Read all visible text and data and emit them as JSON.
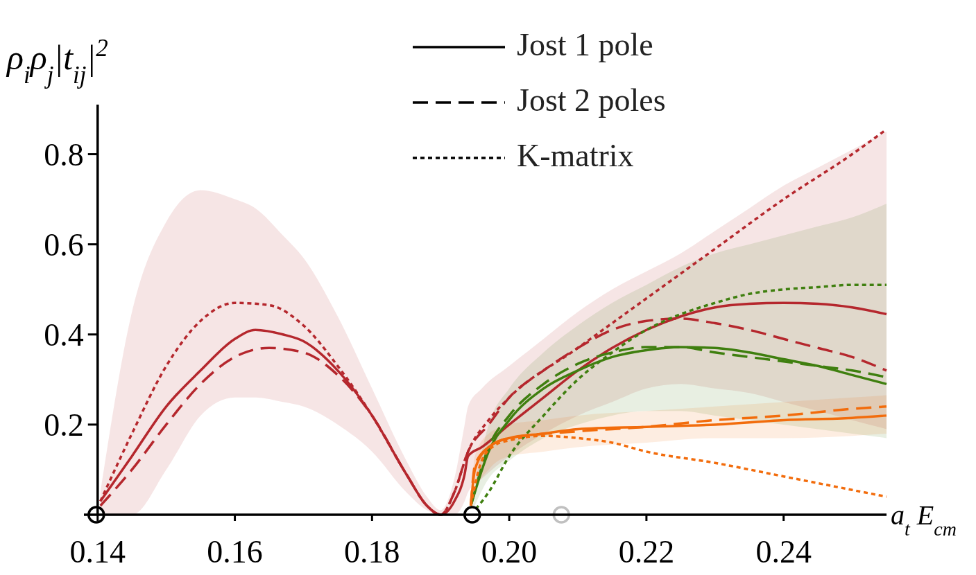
{
  "chart_data": {
    "type": "line",
    "xlabel": "a$_{t}$ E$_{cm}$",
    "ylabel": "ρ$_{i}$ρ$_{j}$|t$_{ij}$|$^{2}$",
    "annotations": [
      "Jost 1 pole",
      "Jost 2 poles",
      "K-matrix"
    ],
    "xlim": [
      0.138,
      0.255
    ],
    "ylim": [
      0,
      0.91
    ],
    "xticks": [
      {
        "value": 0.14,
        "label": "0.14"
      },
      {
        "value": 0.16,
        "label": "0.16"
      },
      {
        "value": 0.18,
        "label": "0.18"
      },
      {
        "value": 0.2,
        "label": "0.20"
      },
      {
        "value": 0.22,
        "label": "0.22"
      },
      {
        "value": 0.24,
        "label": "0.24"
      }
    ],
    "yticks": [
      0.2,
      0.4,
      0.6,
      0.8
    ],
    "grid": false,
    "series": [
      {
        "color": "#b5272d",
        "line_style": "solid",
        "x": [
          0.1404,
          0.145,
          0.15,
          0.155,
          0.16,
          0.163,
          0.167,
          0.17,
          0.175,
          0.18,
          0.185,
          0.188,
          0.19,
          0.192,
          0.1935,
          0.194,
          0.196,
          0.2,
          0.205,
          0.21,
          0.215,
          0.22,
          0.225,
          0.23,
          0.235,
          0.24,
          0.245,
          0.25,
          0.255
        ],
        "values": [
          0.03,
          0.13,
          0.24,
          0.32,
          0.39,
          0.41,
          0.4,
          0.385,
          0.32,
          0.22,
          0.09,
          0.02,
          0,
          0.03,
          0.09,
          0.13,
          0.15,
          0.2,
          0.26,
          0.32,
          0.37,
          0.41,
          0.44,
          0.46,
          0.468,
          0.47,
          0.468,
          0.46,
          0.445
        ],
        "upper": [
          0.05,
          0.45,
          0.65,
          0.72,
          0.7,
          0.68,
          0.62,
          0.57,
          0.44,
          0.28,
          0.12,
          0.04,
          0.01,
          0.08,
          0.2,
          0.24,
          0.28,
          0.33,
          0.39,
          0.45,
          0.5,
          0.54,
          0.58,
          0.63,
          0.68,
          0.73,
          0.77,
          0.81,
          0.85
        ],
        "lower": [
          0,
          0,
          0.1,
          0.22,
          0.26,
          0.26,
          0.25,
          0.24,
          0.2,
          0.14,
          0.05,
          0.01,
          0,
          0,
          0.03,
          0.05,
          0.08,
          0.13,
          0.18,
          0.22,
          0.25,
          0.28,
          0.29,
          0.28,
          0.27,
          0.25,
          0.23,
          0.21,
          0.19
        ]
      },
      {
        "color": "#b5272d",
        "line_style": "dashed",
        "x": [
          0.1404,
          0.145,
          0.15,
          0.155,
          0.16,
          0.165,
          0.17,
          0.175,
          0.18,
          0.185,
          0.188,
          0.19,
          0.192,
          0.194,
          0.197,
          0.2,
          0.205,
          0.21,
          0.215,
          0.22,
          0.225,
          0.23,
          0.235,
          0.24,
          0.245,
          0.25,
          0.255
        ],
        "values": [
          0.02,
          0.1,
          0.2,
          0.29,
          0.35,
          0.37,
          0.36,
          0.31,
          0.22,
          0.09,
          0.02,
          0,
          0.05,
          0.14,
          0.2,
          0.26,
          0.32,
          0.37,
          0.41,
          0.43,
          0.435,
          0.425,
          0.41,
          0.39,
          0.37,
          0.35,
          0.32
        ]
      },
      {
        "color": "#b5272d",
        "line_style": "dotted",
        "x": [
          0.1404,
          0.145,
          0.15,
          0.155,
          0.16,
          0.165,
          0.17,
          0.175,
          0.18,
          0.185,
          0.188,
          0.19,
          0.192,
          0.194,
          0.197,
          0.2,
          0.21,
          0.22,
          0.23,
          0.24,
          0.25,
          0.255
        ],
        "values": [
          0.03,
          0.18,
          0.33,
          0.43,
          0.47,
          0.465,
          0.42,
          0.33,
          0.22,
          0.09,
          0.02,
          0,
          0.05,
          0.14,
          0.21,
          0.26,
          0.37,
          0.48,
          0.59,
          0.7,
          0.8,
          0.855
        ]
      },
      {
        "color": "#3f7f0f",
        "line_style": "solid",
        "x": [
          0.1944,
          0.197,
          0.2,
          0.205,
          0.21,
          0.215,
          0.22,
          0.225,
          0.23,
          0.235,
          0.24,
          0.245,
          0.25,
          0.255
        ],
        "values": [
          0.02,
          0.14,
          0.21,
          0.28,
          0.32,
          0.35,
          0.365,
          0.372,
          0.37,
          0.36,
          0.345,
          0.33,
          0.31,
          0.29
        ],
        "upper": [
          0.02,
          0.2,
          0.28,
          0.36,
          0.42,
          0.47,
          0.51,
          0.55,
          0.58,
          0.6,
          0.62,
          0.64,
          0.66,
          0.69
        ],
        "lower": [
          0,
          0.08,
          0.12,
          0.17,
          0.2,
          0.22,
          0.23,
          0.23,
          0.22,
          0.21,
          0.2,
          0.19,
          0.18,
          0.17
        ]
      },
      {
        "color": "#3f7f0f",
        "line_style": "dashed",
        "x": [
          0.1944,
          0.197,
          0.2,
          0.205,
          0.21,
          0.215,
          0.22,
          0.225,
          0.23,
          0.235,
          0.24,
          0.245,
          0.25,
          0.255
        ],
        "values": [
          0.02,
          0.15,
          0.22,
          0.29,
          0.335,
          0.36,
          0.372,
          0.372,
          0.36,
          0.35,
          0.34,
          0.33,
          0.32,
          0.305
        ]
      },
      {
        "color": "#3f7f0f",
        "line_style": "dotted",
        "x": [
          0.1944,
          0.197,
          0.2,
          0.205,
          0.21,
          0.215,
          0.22,
          0.225,
          0.23,
          0.235,
          0.24,
          0.245,
          0.25,
          0.255
        ],
        "values": [
          0,
          0.05,
          0.13,
          0.22,
          0.3,
          0.36,
          0.41,
          0.445,
          0.47,
          0.49,
          0.5,
          0.505,
          0.51,
          0.51
        ]
      },
      {
        "color": "#f26c0c",
        "line_style": "solid",
        "x": [
          0.1944,
          0.195,
          0.197,
          0.2,
          0.205,
          0.21,
          0.22,
          0.23,
          0.24,
          0.25,
          0.255
        ],
        "values": [
          0.02,
          0.1,
          0.15,
          0.17,
          0.18,
          0.19,
          0.195,
          0.2,
          0.21,
          0.215,
          0.22
        ],
        "upper": [
          0.02,
          0.13,
          0.18,
          0.2,
          0.21,
          0.22,
          0.23,
          0.24,
          0.25,
          0.26,
          0.265
        ],
        "lower": [
          0,
          0.05,
          0.1,
          0.13,
          0.14,
          0.15,
          0.16,
          0.17,
          0.17,
          0.175,
          0.18
        ]
      },
      {
        "color": "#f26c0c",
        "line_style": "dashed",
        "x": [
          0.1944,
          0.195,
          0.197,
          0.2,
          0.21,
          0.22,
          0.23,
          0.24,
          0.25,
          0.255
        ],
        "values": [
          0.02,
          0.11,
          0.15,
          0.17,
          0.185,
          0.195,
          0.21,
          0.22,
          0.235,
          0.24
        ]
      },
      {
        "color": "#f26c0c",
        "line_style": "dotted",
        "x": [
          0.1944,
          0.196,
          0.198,
          0.2,
          0.205,
          0.21,
          0.215,
          0.22,
          0.23,
          0.24,
          0.25,
          0.255
        ],
        "values": [
          0.02,
          0.12,
          0.155,
          0.165,
          0.175,
          0.17,
          0.16,
          0.14,
          0.115,
          0.085,
          0.055,
          0.04
        ]
      },
      {
        "type": "scatter",
        "marker": "circle",
        "x": [
          0.1398,
          0.1946,
          0.2076
        ],
        "values": [
          0,
          0,
          0
        ],
        "colors": [
          "#000000",
          "#000000",
          "#c0c0c0"
        ]
      }
    ]
  }
}
